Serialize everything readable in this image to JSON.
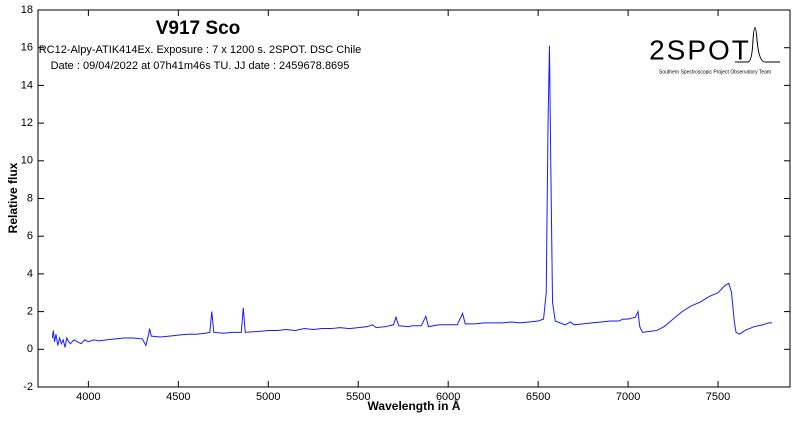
{
  "chart_data": {
    "type": "line",
    "title": "V917 Sco",
    "subtitle_lines": [
      "RC12-Alpy-ATIK414Ex. Exposure : 7 x 1200 s. 2SPOT. DSC Chile",
      "Date : 09/04/2022 at 07h41m46s TU. JJ date : 2459678.8695"
    ],
    "logo_text": "2SPOT",
    "logo_caption": "Southern Spectroscopic Project Observatory Team",
    "x_label": "Wavelength in Å",
    "y_label": "Relative flux",
    "color": "#1a1aff",
    "xlim": [
      3720,
      7900
    ],
    "ylim": [
      -2,
      18
    ],
    "xticks": [
      4000,
      4500,
      5000,
      5500,
      6000,
      6500,
      7000,
      7500
    ],
    "yticks": [
      -2,
      0,
      2,
      4,
      6,
      8,
      10,
      12,
      14,
      16,
      18
    ],
    "x": [
      3800,
      3805,
      3812,
      3820,
      3830,
      3840,
      3850,
      3860,
      3870,
      3880,
      3890,
      3900,
      3920,
      3940,
      3960,
      3980,
      4000,
      4030,
      4060,
      4100,
      4150,
      4200,
      4250,
      4300,
      4320,
      4335,
      4340,
      4350,
      4400,
      4450,
      4500,
      4550,
      4600,
      4650,
      4675,
      4686,
      4697,
      4750,
      4800,
      4850,
      4861,
      4872,
      4950,
      5000,
      5050,
      5100,
      5150,
      5200,
      5250,
      5300,
      5350,
      5400,
      5450,
      5500,
      5550,
      5580,
      5600,
      5650,
      5696,
      5710,
      5725,
      5780,
      5800,
      5850,
      5876,
      5890,
      5950,
      6000,
      6050,
      6080,
      6095,
      6150,
      6200,
      6250,
      6300,
      6350,
      6400,
      6450,
      6500,
      6530,
      6545,
      6555,
      6563,
      6570,
      6580,
      6595,
      6650,
      6680,
      6700,
      6750,
      6800,
      6850,
      6900,
      6950,
      6970,
      7000,
      7040,
      7055,
      7065,
      7080,
      7120,
      7160,
      7200,
      7250,
      7300,
      7350,
      7400,
      7450,
      7500,
      7540,
      7560,
      7575,
      7590,
      7600,
      7620,
      7650,
      7700,
      7750,
      7780,
      7800
    ],
    "values": [
      0.6,
      1.0,
      0.4,
      0.8,
      0.2,
      0.6,
      0.3,
      0.5,
      0.1,
      0.6,
      0.4,
      0.3,
      0.5,
      0.4,
      0.3,
      0.5,
      0.4,
      0.5,
      0.45,
      0.5,
      0.55,
      0.6,
      0.6,
      0.55,
      0.2,
      0.8,
      1.1,
      0.7,
      0.65,
      0.7,
      0.75,
      0.8,
      0.8,
      0.85,
      0.9,
      2.0,
      0.9,
      0.85,
      0.9,
      0.9,
      2.2,
      0.9,
      0.95,
      1.0,
      1.0,
      1.05,
      1.0,
      1.1,
      1.05,
      1.1,
      1.1,
      1.15,
      1.1,
      1.15,
      1.2,
      1.3,
      1.15,
      1.2,
      1.3,
      1.7,
      1.25,
      1.2,
      1.25,
      1.25,
      1.75,
      1.2,
      1.3,
      1.3,
      1.3,
      1.9,
      1.35,
      1.35,
      1.4,
      1.4,
      1.4,
      1.45,
      1.4,
      1.45,
      1.5,
      1.6,
      3,
      12,
      16.1,
      10,
      2.5,
      1.5,
      1.3,
      1.45,
      1.3,
      1.35,
      1.4,
      1.45,
      1.5,
      1.5,
      1.6,
      1.6,
      1.7,
      2.0,
      1.2,
      0.9,
      0.95,
      1.0,
      1.2,
      1.6,
      2.0,
      2.3,
      2.5,
      2.8,
      3.0,
      3.4,
      3.5,
      3.0,
      1.5,
      0.9,
      0.8,
      1.0,
      1.2,
      1.3,
      1.4,
      1.4
    ]
  }
}
